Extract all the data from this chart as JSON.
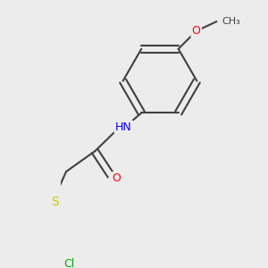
{
  "background_color": "#ececec",
  "bond_color": "#404040",
  "bond_width": 1.5,
  "atom_colors": {
    "O": "#ff0000",
    "N": "#0000ff",
    "S": "#c8c800",
    "Cl": "#00aa00",
    "F": "#8888cc",
    "C": "#404040",
    "H": "#808080"
  },
  "font_size": 9,
  "label_font_size": 9
}
